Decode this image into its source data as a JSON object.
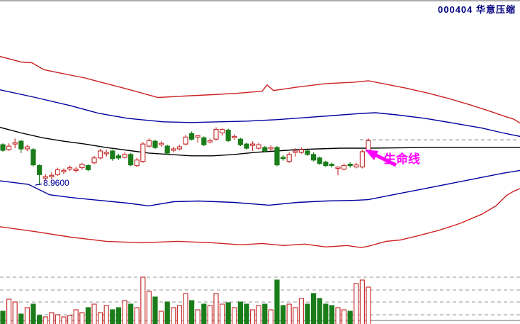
{
  "header": {
    "title": "000404  华意压缩",
    "stock_code": "000404",
    "stock_name": "华意压缩"
  },
  "annotations": {
    "low_label": {
      "text": "8.9600",
      "color": "#0000a0",
      "marks": "lowest price of visible range"
    },
    "lifeline_label": {
      "text": "生命线",
      "color": "#ff00ff",
      "points_at": "last candle crossing the black moving-average line"
    }
  },
  "colors": {
    "background": "#ffffff",
    "up_candle": "#c83434",
    "down_candle": "#1a7d1a",
    "outer_band": "#cc2222",
    "inner_band": "#0000a0",
    "lifeline": "#000000",
    "grid": "#aaaaaa",
    "annotation": "#ff00ff",
    "title_text": "#000080"
  },
  "chart_data": {
    "type": "candlestick",
    "title": "000404 华意压缩",
    "panes": [
      "price with envelope bands",
      "volume"
    ],
    "marked_low": 8.96,
    "last_close": 9.6,
    "last_price_line": 9.61,
    "price_range_visible": [
      7.8,
      11.6
    ],
    "grid": "dashed horizontal lines in volume pane only",
    "candles": [
      {
        "o": 9.54,
        "h": 9.56,
        "l": 9.44,
        "c": 9.46,
        "d": "down"
      },
      {
        "o": 9.47,
        "h": 9.56,
        "l": 9.45,
        "c": 9.52,
        "d": "up"
      },
      {
        "o": 9.55,
        "h": 9.63,
        "l": 9.49,
        "c": 9.57,
        "d": "up"
      },
      {
        "o": 9.59,
        "h": 9.61,
        "l": 9.42,
        "c": 9.48,
        "d": "down"
      },
      {
        "o": 9.48,
        "h": 9.54,
        "l": 9.45,
        "c": 9.51,
        "d": "up"
      },
      {
        "o": 9.47,
        "h": 9.49,
        "l": 9.23,
        "c": 9.25,
        "d": "down"
      },
      {
        "o": 9.24,
        "h": 9.26,
        "l": 8.96,
        "c": 9.11,
        "d": "down"
      },
      {
        "o": 9.06,
        "h": 9.12,
        "l": 9.02,
        "c": 9.08,
        "d": "up"
      },
      {
        "o": 9.08,
        "h": 9.14,
        "l": 9.04,
        "c": 9.1,
        "d": "up"
      },
      {
        "o": 9.11,
        "h": 9.21,
        "l": 9.09,
        "c": 9.18,
        "d": "up"
      },
      {
        "o": 9.15,
        "h": 9.2,
        "l": 9.12,
        "c": 9.17,
        "d": "up"
      },
      {
        "o": 9.19,
        "h": 9.24,
        "l": 9.16,
        "c": 9.21,
        "d": "up"
      },
      {
        "o": 9.17,
        "h": 9.22,
        "l": 9.14,
        "c": 9.19,
        "d": "up"
      },
      {
        "o": 9.21,
        "h": 9.28,
        "l": 9.18,
        "c": 9.26,
        "d": "up"
      },
      {
        "o": 9.24,
        "h": 9.26,
        "l": 9.16,
        "c": 9.18,
        "d": "down"
      },
      {
        "o": 9.28,
        "h": 9.38,
        "l": 9.26,
        "c": 9.35,
        "d": "up"
      },
      {
        "o": 9.35,
        "h": 9.48,
        "l": 9.33,
        "c": 9.45,
        "d": "up"
      },
      {
        "o": 9.41,
        "h": 9.47,
        "l": 9.37,
        "c": 9.43,
        "d": "up"
      },
      {
        "o": 9.45,
        "h": 9.47,
        "l": 9.31,
        "c": 9.34,
        "d": "down"
      },
      {
        "o": 9.38,
        "h": 9.41,
        "l": 9.32,
        "c": 9.35,
        "d": "down"
      },
      {
        "o": 9.36,
        "h": 9.43,
        "l": 9.34,
        "c": 9.4,
        "d": "up"
      },
      {
        "o": 9.4,
        "h": 9.42,
        "l": 9.23,
        "c": 9.25,
        "d": "down"
      },
      {
        "o": 9.24,
        "h": 9.35,
        "l": 9.22,
        "c": 9.32,
        "d": "up"
      },
      {
        "o": 9.3,
        "h": 9.58,
        "l": 9.28,
        "c": 9.55,
        "d": "up"
      },
      {
        "o": 9.52,
        "h": 9.63,
        "l": 9.5,
        "c": 9.6,
        "d": "up"
      },
      {
        "o": 9.59,
        "h": 9.61,
        "l": 9.48,
        "c": 9.5,
        "d": "down"
      },
      {
        "o": 9.54,
        "h": 9.59,
        "l": 9.51,
        "c": 9.56,
        "d": "up"
      },
      {
        "o": 9.52,
        "h": 9.54,
        "l": 9.4,
        "c": 9.42,
        "d": "down"
      },
      {
        "o": 9.46,
        "h": 9.51,
        "l": 9.43,
        "c": 9.48,
        "d": "up"
      },
      {
        "o": 9.48,
        "h": 9.54,
        "l": 9.46,
        "c": 9.51,
        "d": "up"
      },
      {
        "o": 9.55,
        "h": 9.68,
        "l": 9.53,
        "c": 9.65,
        "d": "up"
      },
      {
        "o": 9.7,
        "h": 9.73,
        "l": 9.6,
        "c": 9.62,
        "d": "down"
      },
      {
        "o": 9.65,
        "h": 9.67,
        "l": 9.57,
        "c": 9.67,
        "d": "up"
      },
      {
        "o": 9.64,
        "h": 9.66,
        "l": 9.52,
        "c": 9.54,
        "d": "down"
      },
      {
        "o": 9.58,
        "h": 9.63,
        "l": 9.56,
        "c": 9.6,
        "d": "up"
      },
      {
        "o": 9.62,
        "h": 9.79,
        "l": 9.6,
        "c": 9.76,
        "d": "up"
      },
      {
        "o": 9.71,
        "h": 9.78,
        "l": 9.67,
        "c": 9.76,
        "d": "up"
      },
      {
        "o": 9.75,
        "h": 9.77,
        "l": 9.58,
        "c": 9.6,
        "d": "down"
      },
      {
        "o": 9.64,
        "h": 9.69,
        "l": 9.61,
        "c": 9.66,
        "d": "up"
      },
      {
        "o": 9.62,
        "h": 9.64,
        "l": 9.52,
        "c": 9.54,
        "d": "down"
      },
      {
        "o": 9.55,
        "h": 9.57,
        "l": 9.47,
        "c": 9.49,
        "d": "down"
      },
      {
        "o": 9.53,
        "h": 9.59,
        "l": 9.45,
        "c": 9.55,
        "d": "up"
      },
      {
        "o": 9.49,
        "h": 9.57,
        "l": 9.47,
        "c": 9.54,
        "d": "up"
      },
      {
        "o": 9.5,
        "h": 9.52,
        "l": 9.43,
        "c": 9.45,
        "d": "down"
      },
      {
        "o": 9.48,
        "h": 9.53,
        "l": 9.45,
        "c": 9.5,
        "d": "up"
      },
      {
        "o": 9.5,
        "h": 9.52,
        "l": 9.23,
        "c": 9.25,
        "d": "down"
      },
      {
        "o": 9.36,
        "h": 9.39,
        "l": 9.31,
        "c": 9.34,
        "d": "down"
      },
      {
        "o": 9.3,
        "h": 9.43,
        "l": 9.28,
        "c": 9.4,
        "d": "up"
      },
      {
        "o": 9.43,
        "h": 9.49,
        "l": 9.37,
        "c": 9.45,
        "d": "up"
      },
      {
        "o": 9.43,
        "h": 9.5,
        "l": 9.41,
        "c": 9.47,
        "d": "up"
      },
      {
        "o": 9.45,
        "h": 9.47,
        "l": 9.38,
        "c": 9.4,
        "d": "down"
      },
      {
        "o": 9.4,
        "h": 9.43,
        "l": 9.3,
        "c": 9.32,
        "d": "down"
      },
      {
        "o": 9.35,
        "h": 9.37,
        "l": 9.25,
        "c": 9.27,
        "d": "down"
      },
      {
        "o": 9.29,
        "h": 9.31,
        "l": 9.22,
        "c": 9.24,
        "d": "down"
      },
      {
        "o": 9.26,
        "h": 9.29,
        "l": 9.21,
        "c": 9.24,
        "d": "down"
      },
      {
        "o": 9.2,
        "h": 9.22,
        "l": 9.1,
        "c": 9.22,
        "d": "up"
      },
      {
        "o": 9.19,
        "h": 9.27,
        "l": 9.17,
        "c": 9.24,
        "d": "up"
      },
      {
        "o": 9.26,
        "h": 9.29,
        "l": 9.21,
        "c": 9.24,
        "d": "down"
      },
      {
        "o": 9.22,
        "h": 9.28,
        "l": 9.2,
        "c": 9.25,
        "d": "up"
      },
      {
        "o": 9.22,
        "h": 9.47,
        "l": 9.2,
        "c": 9.44,
        "d": "up"
      },
      {
        "o": 9.46,
        "h": 9.63,
        "l": 9.44,
        "c": 9.6,
        "d": "up"
      }
    ],
    "volumes_relative": [
      20,
      37,
      33,
      16,
      25,
      30,
      14,
      12,
      18,
      15,
      12,
      14,
      22,
      18,
      25,
      30,
      18,
      28,
      22,
      25,
      35,
      30,
      25,
      68,
      48,
      40,
      20,
      33,
      25,
      28,
      45,
      35,
      22,
      30,
      28,
      45,
      30,
      32,
      25,
      33,
      30,
      22,
      28,
      30,
      22,
      64,
      28,
      30,
      25,
      38,
      30,
      45,
      38,
      30,
      28,
      25,
      22,
      20,
      59,
      64,
      54
    ],
    "overlays": [
      {
        "name": "upper-outer-band",
        "color": "#cc2222",
        "points": [
          [
            0,
            10.81
          ],
          [
            30,
            10.73
          ],
          [
            45,
            10.72
          ],
          [
            62,
            10.62
          ],
          [
            90,
            10.56
          ],
          [
            120,
            10.5
          ],
          [
            150,
            10.42
          ],
          [
            180,
            10.34
          ],
          [
            223,
            10.22
          ],
          [
            260,
            10.24
          ],
          [
            300,
            10.26
          ],
          [
            335,
            10.28
          ],
          [
            370,
            10.31
          ],
          [
            377,
            10.4
          ],
          [
            386,
            10.32
          ],
          [
            420,
            10.37
          ],
          [
            460,
            10.42
          ],
          [
            500,
            10.44
          ],
          [
            520,
            10.46
          ],
          [
            545,
            10.41
          ],
          [
            575,
            10.35
          ],
          [
            605,
            10.28
          ],
          [
            635,
            10.2
          ],
          [
            665,
            10.11
          ],
          [
            695,
            10.01
          ],
          [
            715,
            9.94
          ],
          [
            725,
            9.91
          ],
          [
            734,
            9.85
          ]
        ]
      },
      {
        "name": "upper-inner-band",
        "color": "#0000a0",
        "points": [
          [
            0,
            10.33
          ],
          [
            50,
            10.22
          ],
          [
            100,
            10.1
          ],
          [
            140,
            9.99
          ],
          [
            180,
            9.92
          ],
          [
            230,
            9.87
          ],
          [
            270,
            9.86
          ],
          [
            310,
            9.87
          ],
          [
            350,
            9.88
          ],
          [
            390,
            9.9
          ],
          [
            430,
            9.93
          ],
          [
            470,
            9.96
          ],
          [
            510,
            9.99
          ],
          [
            530,
            10.0
          ],
          [
            560,
            9.97
          ],
          [
            600,
            9.92
          ],
          [
            640,
            9.85
          ],
          [
            680,
            9.78
          ],
          [
            710,
            9.71
          ],
          [
            734,
            9.66
          ]
        ]
      },
      {
        "name": "lifeline-ma",
        "color": "#000000",
        "points": [
          [
            0,
            9.79
          ],
          [
            30,
            9.71
          ],
          [
            60,
            9.64
          ],
          [
            90,
            9.59
          ],
          [
            120,
            9.55
          ],
          [
            150,
            9.5
          ],
          [
            180,
            9.46
          ],
          [
            210,
            9.42
          ],
          [
            240,
            9.4
          ],
          [
            270,
            9.38
          ],
          [
            300,
            9.38
          ],
          [
            330,
            9.4
          ],
          [
            360,
            9.43
          ],
          [
            390,
            9.45
          ],
          [
            420,
            9.47
          ],
          [
            450,
            9.48
          ],
          [
            480,
            9.49
          ],
          [
            520,
            9.49
          ],
          [
            600,
            9.5
          ],
          [
            734,
            9.5
          ]
        ]
      },
      {
        "name": "lower-inner-band",
        "color": "#0000a0",
        "points": [
          [
            0,
            9.02
          ],
          [
            40,
            8.97
          ],
          [
            70,
            8.82
          ],
          [
            100,
            8.78
          ],
          [
            140,
            8.74
          ],
          [
            180,
            8.7
          ],
          [
            210,
            8.66
          ],
          [
            245,
            8.72
          ],
          [
            280,
            8.73
          ],
          [
            330,
            8.71
          ],
          [
            380,
            8.67
          ],
          [
            420,
            8.71
          ],
          [
            460,
            8.73
          ],
          [
            500,
            8.74
          ],
          [
            520,
            8.75
          ],
          [
            560,
            8.83
          ],
          [
            600,
            8.91
          ],
          [
            640,
            8.99
          ],
          [
            680,
            9.07
          ],
          [
            710,
            9.13
          ],
          [
            734,
            9.17
          ]
        ]
      },
      {
        "name": "lower-outer-band",
        "color": "#cc2222",
        "points": [
          [
            0,
            8.36
          ],
          [
            50,
            8.29
          ],
          [
            100,
            8.21
          ],
          [
            150,
            8.15
          ],
          [
            200,
            8.13
          ],
          [
            250,
            8.15
          ],
          [
            300,
            8.13
          ],
          [
            340,
            8.1
          ],
          [
            370,
            8.12
          ],
          [
            400,
            8.09
          ],
          [
            430,
            8.11
          ],
          [
            460,
            8.07
          ],
          [
            490,
            8.09
          ],
          [
            510,
            8.06
          ],
          [
            520,
            8.08
          ],
          [
            545,
            8.15
          ],
          [
            565,
            8.17
          ],
          [
            590,
            8.23
          ],
          [
            620,
            8.31
          ],
          [
            650,
            8.41
          ],
          [
            680,
            8.54
          ],
          [
            700,
            8.66
          ],
          [
            715,
            8.81
          ],
          [
            725,
            8.87
          ],
          [
            734,
            8.91
          ]
        ]
      }
    ]
  }
}
